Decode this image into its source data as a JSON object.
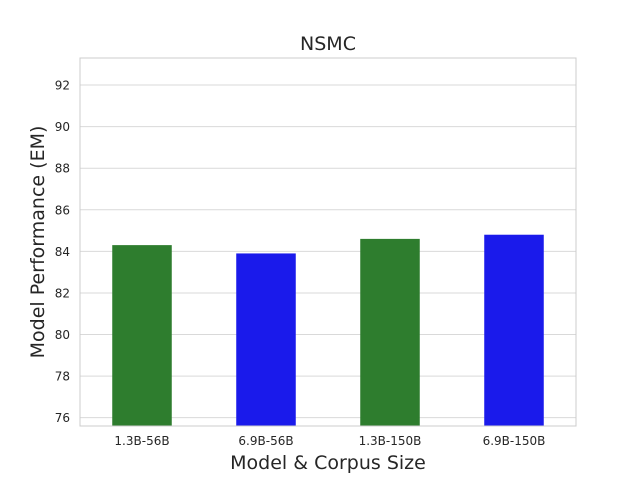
{
  "chart_data": {
    "type": "bar",
    "title": "NSMC",
    "xlabel": "Model & Corpus Size",
    "ylabel": "Model Performance (EM)",
    "categories": [
      "1.3B-56B",
      "6.9B-56B",
      "1.3B-150B",
      "6.9B-150B"
    ],
    "values": [
      84.3,
      83.9,
      84.6,
      84.8
    ],
    "ylim": [
      75.6,
      93.3
    ],
    "yticks": [
      76,
      78,
      80,
      82,
      84,
      86,
      88,
      90,
      92
    ],
    "grid": "horizontal",
    "colors": [
      "#2e7d2e",
      "#1a1aeb",
      "#2e7d2e",
      "#1a1aeb"
    ]
  }
}
